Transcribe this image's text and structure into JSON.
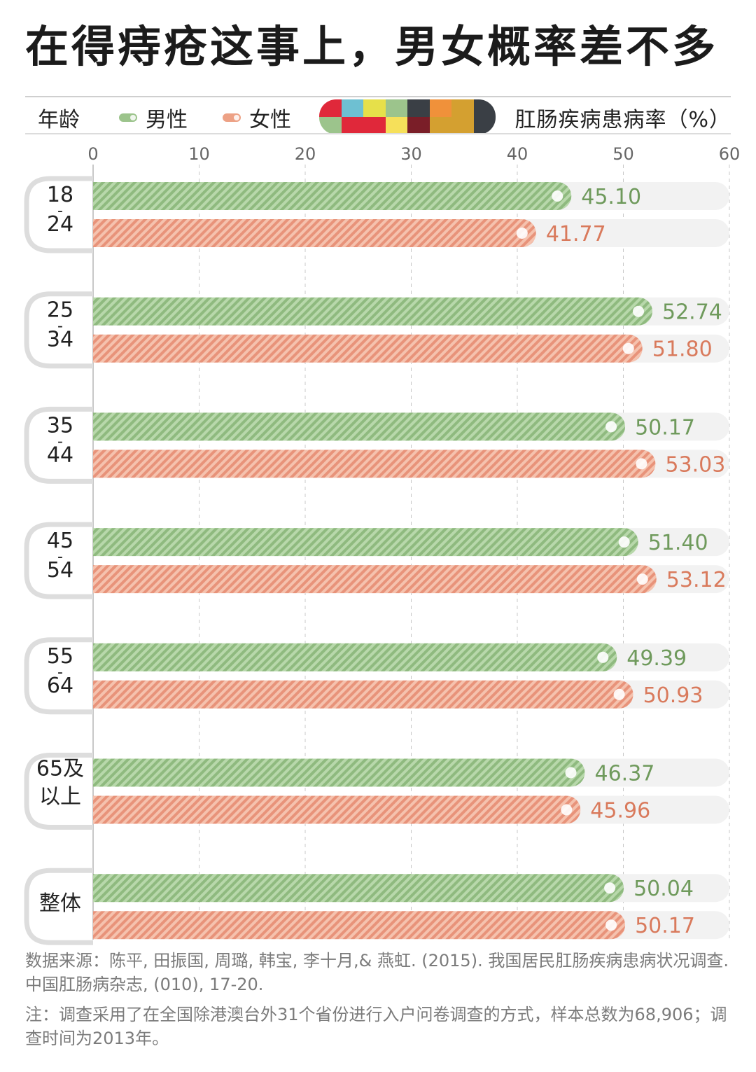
{
  "title": "在得痔疮这事上，男女概率差不多",
  "header": {
    "age_label": "年龄",
    "unit_label": "肛肠疾病患病率（%）"
  },
  "legend": [
    {
      "name": "男性",
      "color": "#9cc48c"
    },
    {
      "name": "女性",
      "color": "#eda185"
    }
  ],
  "logo_colors": [
    "#e0283a",
    "#6ec0d2",
    "#e6e04a",
    "#9cc48c",
    "#3a3f45",
    "#f0913a",
    "#d4a030",
    "#3a3f45",
    "#9cc48c",
    "#e0283a",
    "#e0283a",
    "#f6e05a",
    "#7a1e28",
    "#d4a030",
    "#d4a030",
    "#3a3f45"
  ],
  "colors": {
    "male_value": "#6f9a5c",
    "female_value": "#d97a5c",
    "track": "#f2f2f2",
    "grid": "#c8c8c8"
  },
  "chart_data": {
    "type": "bar",
    "orientation": "horizontal",
    "xlim": [
      0,
      60
    ],
    "xticks": [
      "0",
      "10",
      "20",
      "30",
      "40",
      "50",
      "60"
    ],
    "categories": [
      [
        "18",
        "-",
        "24"
      ],
      [
        "25",
        "-",
        "34"
      ],
      [
        "35",
        "-",
        "44"
      ],
      [
        "45",
        "-",
        "54"
      ],
      [
        "55",
        "-",
        "64"
      ],
      [
        "65及",
        "以上"
      ],
      [
        "整体"
      ]
    ],
    "series": [
      {
        "name": "男性",
        "values": [
          45.1,
          52.74,
          50.17,
          51.4,
          49.39,
          46.37,
          50.04
        ],
        "labels": [
          "45.10",
          "52.74",
          "50.17",
          "51.40",
          "49.39",
          "46.37",
          "50.04"
        ]
      },
      {
        "name": "女性",
        "values": [
          41.77,
          51.8,
          53.03,
          53.12,
          50.93,
          45.96,
          50.17
        ],
        "labels": [
          "41.77",
          "51.80",
          "53.03",
          "53.12",
          "50.93",
          "45.96",
          "50.17"
        ]
      }
    ]
  },
  "source": {
    "text": "数据来源：陈平, 田振国, 周璐, 韩宝, 李十月,& 燕虹. (2015). 我国居民肛肠疾病患病状况调查. 中国肛肠病杂志, (010), 17-20.",
    "note": "注：调查采用了在全国除港澳台外31个省份进行入户问卷调查的方式，样本总数为68,906；调查时间为2013年。"
  }
}
